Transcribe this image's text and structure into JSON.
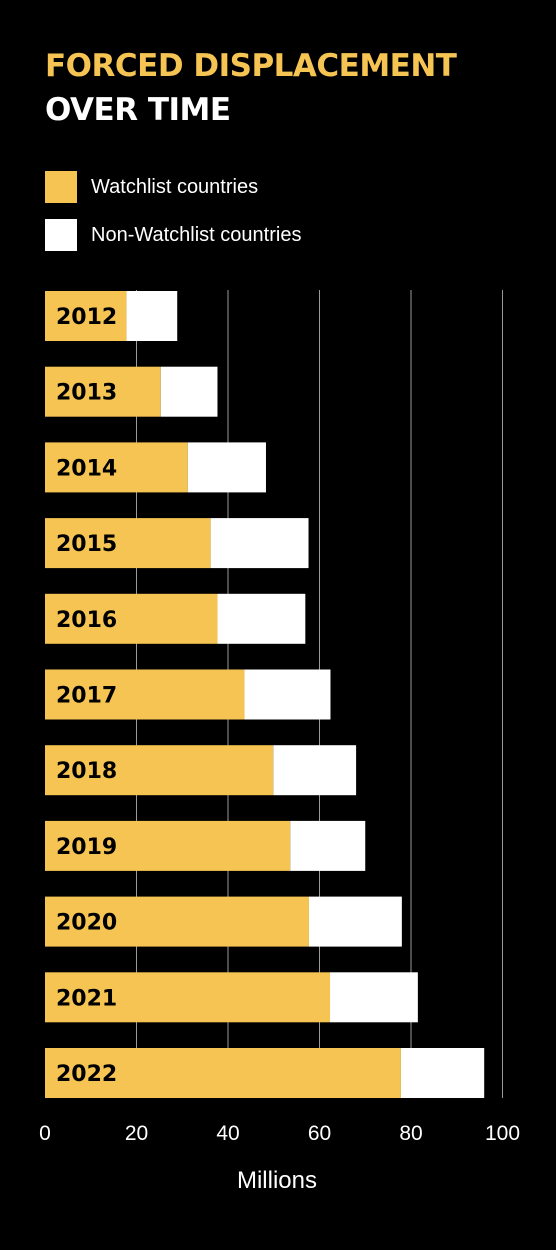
{
  "title": {
    "line1": "FORCED DISPLACEMENT",
    "line2": "OVER TIME"
  },
  "legend": [
    {
      "label": "Watchlist countries",
      "color": "#f5c453"
    },
    {
      "label": "Non-Watchlist countries",
      "color": "#ffffff"
    }
  ],
  "chart_data": {
    "type": "bar",
    "orientation": "horizontal",
    "stacked": true,
    "categories": [
      "2012",
      "2013",
      "2014",
      "2015",
      "2016",
      "2017",
      "2018",
      "2019",
      "2020",
      "2021",
      "2022"
    ],
    "series": [
      {
        "name": "Watchlist countries",
        "color": "#f5c453",
        "values": [
          17.8,
          25.3,
          31.2,
          36.2,
          37.7,
          43.6,
          49.9,
          53.6,
          57.7,
          62.3,
          77.8
        ]
      },
      {
        "name": "Non-Watchlist countries",
        "color": "#ffffff",
        "values": [
          11.1,
          12.4,
          17.1,
          21.4,
          19.2,
          18.8,
          18.1,
          16.4,
          20.3,
          19.2,
          18.2
        ]
      }
    ],
    "xlabel": "Millions",
    "ylabel": "",
    "xlim": [
      0,
      100
    ],
    "xticks": [
      0,
      20,
      40,
      60,
      80,
      100
    ],
    "grid": true,
    "grid_color": "#9a9a9a",
    "legend_position": "top-left"
  }
}
